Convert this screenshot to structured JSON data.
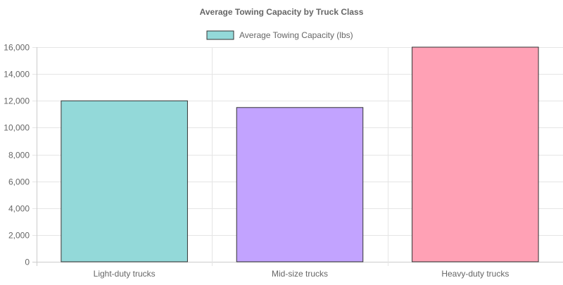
{
  "chart_data": {
    "type": "bar",
    "title": "Average Towing Capacity by Truck Class",
    "categories": [
      "Light-duty trucks",
      "Mid-size trucks",
      "Heavy-duty trucks"
    ],
    "series": [
      {
        "name": "Average Towing Capacity (lbs)",
        "values": [
          12000,
          11500,
          16000
        ],
        "colors": [
          "#93d9d9",
          "#c2a3ff",
          "#ffa1b5"
        ],
        "border_color": "#333333"
      }
    ],
    "xlabel": "",
    "ylabel": "",
    "ylim": [
      0,
      16000
    ],
    "yticks": [
      "0",
      "2,000",
      "4,000",
      "6,000",
      "8,000",
      "10,000",
      "12,000",
      "14,000",
      "16,000"
    ],
    "grid": true,
    "legend": "top"
  }
}
